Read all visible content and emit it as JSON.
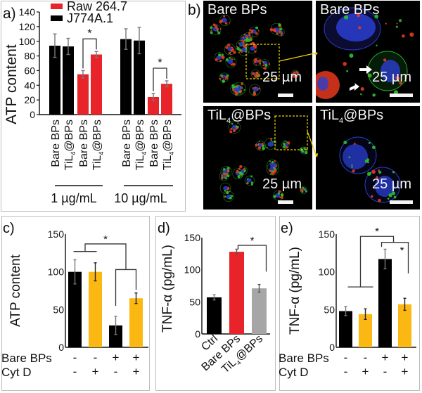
{
  "chart_data": [
    {
      "panel": "a)",
      "type": "bar",
      "ylabel": "ATP content",
      "ylim": [
        0,
        140
      ],
      "yticks": [
        "0",
        "20",
        "40",
        "60",
        "80",
        "100",
        "120",
        "140"
      ],
      "legend": [
        {
          "name": "Raw 264.7",
          "color": "#e8242a"
        },
        {
          "name": "J774A.1",
          "color": "#000000"
        }
      ],
      "legend_position": "top",
      "categories": [
        "Bare BPs",
        "TiL4@BPs",
        "Bare BPs",
        "TiL4@BPs",
        "Bare BPs",
        "TiL4@BPs",
        "Bare BPs",
        "TiL4@BPs"
      ],
      "category_sub": "4",
      "bars": [
        {
          "group": "1 µg/mL",
          "cell": "J774A.1",
          "label": "Bare BPs",
          "value": 94,
          "error": 16
        },
        {
          "group": "1 µg/mL",
          "cell": "J774A.1",
          "label": "TiL4@BPs",
          "value": 93,
          "error": 11
        },
        {
          "group": "1 µg/mL",
          "cell": "Raw 264.7",
          "label": "Bare BPs",
          "value": 55,
          "error": 5
        },
        {
          "group": "1 µg/mL",
          "cell": "Raw 264.7",
          "label": "TiL4@BPs",
          "value": 82,
          "error": 4
        },
        {
          "group": "10 µg/mL",
          "cell": "J774A.1",
          "label": "Bare BPs",
          "value": 103,
          "error": 14
        },
        {
          "group": "10 µg/mL",
          "cell": "J774A.1",
          "label": "TiL4@BPs",
          "value": 101,
          "error": 18
        },
        {
          "group": "10 µg/mL",
          "cell": "Raw 264.7",
          "label": "Bare BPs",
          "value": 24,
          "error": 5
        },
        {
          "group": "10 µg/mL",
          "cell": "Raw 264.7",
          "label": "TiL4@BPs",
          "value": 42,
          "error": 4
        }
      ],
      "groups": [
        "1 µg/mL",
        "10 µg/mL"
      ],
      "significance": [
        {
          "between": [
            2,
            3
          ],
          "mark": "*"
        },
        {
          "between": [
            6,
            7
          ],
          "mark": "*"
        }
      ]
    },
    {
      "panel": "c)",
      "type": "bar",
      "ylabel": "ATP content",
      "ylim": [
        0,
        150
      ],
      "yticks": [
        "0",
        "50",
        "100",
        "150"
      ],
      "bars": [
        {
          "value": 100,
          "error": 16,
          "color": "#000000",
          "bare_bps": "-",
          "cyt_d": "-"
        },
        {
          "value": 100,
          "error": 12,
          "color": "#fbb812",
          "bare_bps": "-",
          "cyt_d": "+"
        },
        {
          "value": 29,
          "error": 12,
          "color": "#000000",
          "bare_bps": "+",
          "cyt_d": "-"
        },
        {
          "value": 65,
          "error": 7,
          "color": "#fbb812",
          "bare_bps": "+",
          "cyt_d": "+"
        }
      ],
      "row_labels": [
        "Bare BPs",
        "Cyt D"
      ],
      "significance": [
        {
          "between": [
            "bars 1-2",
            "bars 3-4"
          ],
          "mark": "*"
        }
      ]
    },
    {
      "panel": "d)",
      "type": "bar",
      "ylabel": "TNF-α (pg/mL)",
      "ylim": [
        0,
        150
      ],
      "yticks": [
        "0",
        "50",
        "100",
        "150"
      ],
      "categories": [
        "Ctrl",
        "Bare BPs",
        "TiL4@BPs"
      ],
      "values": [
        57,
        128,
        71
      ],
      "errors": [
        4,
        4,
        6
      ],
      "colors": [
        "#000000",
        "#e8242a",
        "#a6a6a6"
      ],
      "significance": [
        {
          "between": [
            1,
            2
          ],
          "mark": "*"
        }
      ]
    },
    {
      "panel": "e)",
      "type": "bar",
      "ylabel": "TNF-α (pg/mL)",
      "ylim": [
        0,
        150
      ],
      "yticks": [
        "0",
        "50",
        "100",
        "150"
      ],
      "bars": [
        {
          "value": 48,
          "error": 6,
          "color": "#000000",
          "bare_bps": "-",
          "cyt_d": "-"
        },
        {
          "value": 44,
          "error": 7,
          "color": "#fbb812",
          "bare_bps": "-",
          "cyt_d": "+"
        },
        {
          "value": 117,
          "error": 13,
          "color": "#000000",
          "bare_bps": "+",
          "cyt_d": "-"
        },
        {
          "value": 57,
          "error": 8,
          "color": "#fbb812",
          "bare_bps": "+",
          "cyt_d": "+"
        }
      ],
      "row_labels": [
        "Bare BPs",
        "Cyt D"
      ],
      "significance": [
        {
          "between": [
            "bars 1-2",
            "bars 3-4"
          ],
          "mark": "*"
        },
        {
          "between": [
            3,
            4
          ],
          "mark": "*"
        }
      ]
    }
  ],
  "panel_labels": {
    "a": "a)",
    "b": "b)",
    "c": "c)",
    "d": "d)",
    "e": "e)"
  },
  "micrographs": {
    "panel": "b)",
    "tiles": [
      {
        "title": "Bare BPs",
        "sub": "",
        "scale": "25 µm",
        "view": "overview"
      },
      {
        "title": "Bare BPs",
        "sub": "",
        "scale": "25 µm",
        "view": "zoom"
      },
      {
        "title_pre": "TiL",
        "sub": "4",
        "title_post": "@BPs",
        "scale": "25 µm",
        "view": "overview"
      },
      {
        "title_pre": "TiL",
        "sub": "4",
        "title_post": "@BPs",
        "scale": "25 µm",
        "view": "zoom"
      }
    ],
    "colors": {
      "nucleus": "#2a3fd0",
      "red": "#e83a1c",
      "green": "#2fbf2f",
      "highlight_box": "#f0d000"
    }
  },
  "star": "*"
}
